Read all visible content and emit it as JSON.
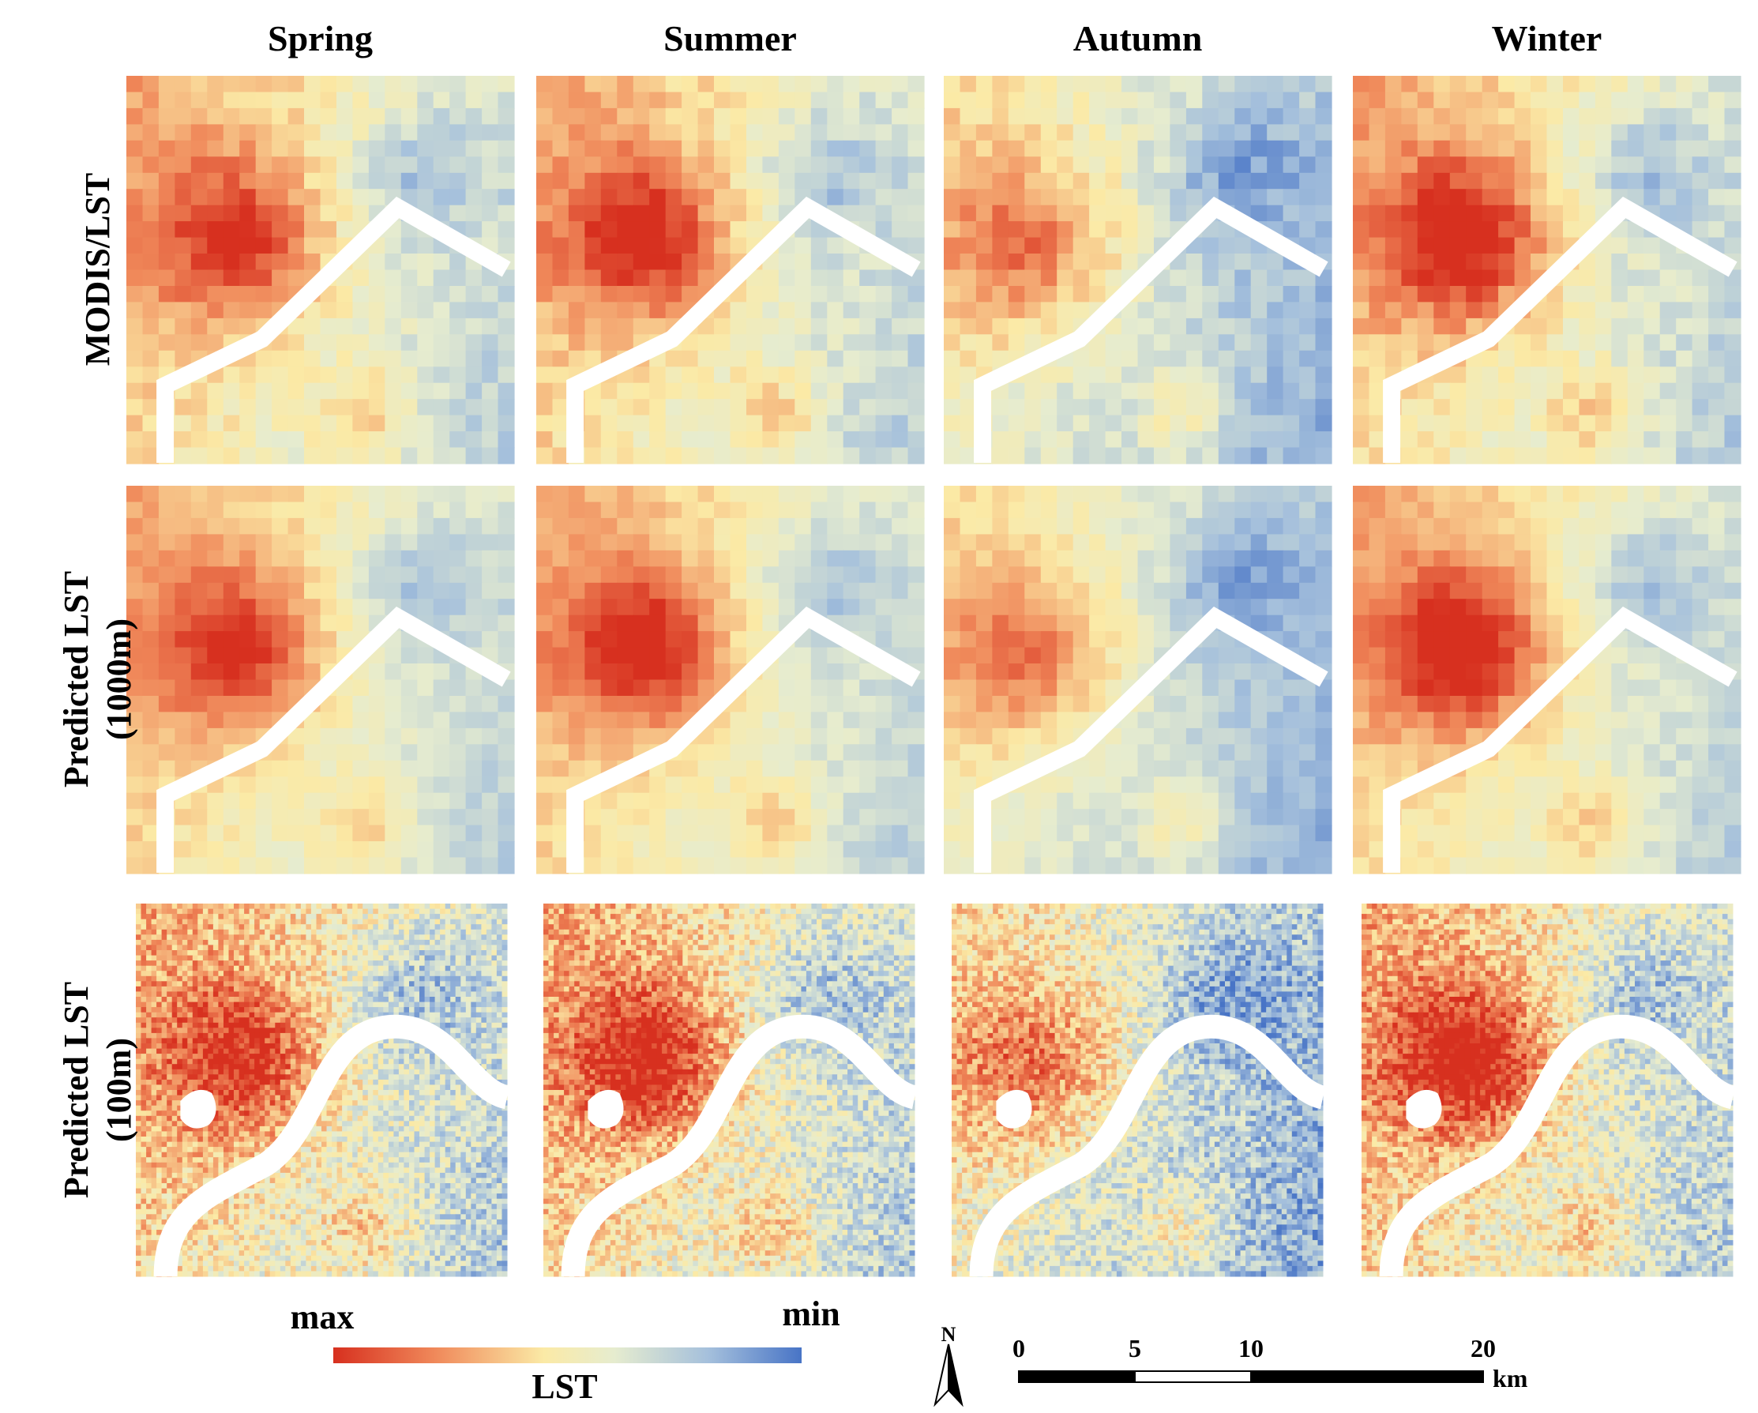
{
  "columns": [
    "Spring",
    "Summer",
    "Autumn",
    "Winter"
  ],
  "row_labels": [
    [
      "MODIS/LST"
    ],
    [
      "Predicted  LST",
      "(1000m)"
    ],
    [
      "Predicted  LST",
      "(100m)"
    ]
  ],
  "legend": {
    "max": "max",
    "min": "min",
    "title": "LST"
  },
  "north": "N",
  "scale_bar": {
    "ticks": [
      0,
      5,
      10,
      20
    ],
    "unit": "km"
  }
}
